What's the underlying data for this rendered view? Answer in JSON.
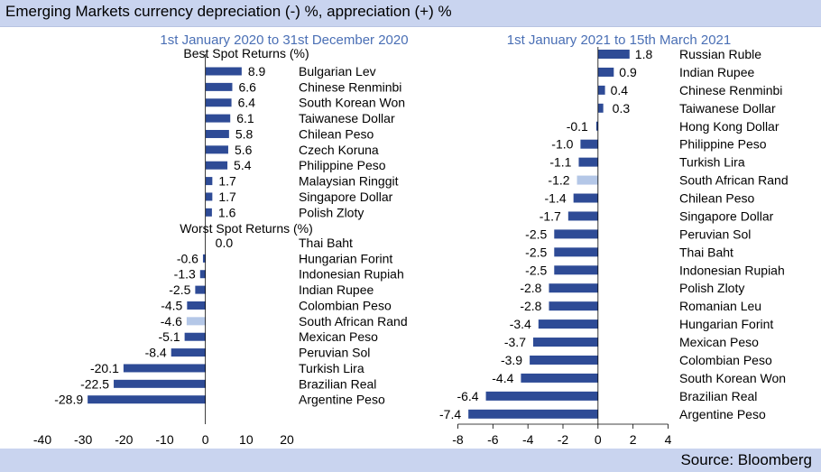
{
  "header": {
    "title": "Emerging Markets currency depreciation (-) %, appreciation (+) %"
  },
  "footer": {
    "source": "Source: Bloomberg"
  },
  "colors": {
    "bar": "#2e4b96",
    "highlight": "#b4c7e7",
    "subtitle": "#4a6fb5",
    "band": "#c9d4ef"
  },
  "chart_data": [
    {
      "type": "bar",
      "orientation": "horizontal",
      "title": "1st January 2020 to 31st  December 2020",
      "xlim": [
        -40,
        20
      ],
      "xticks": [
        -40,
        -30,
        -20,
        -10,
        0,
        10,
        20
      ],
      "groups": [
        {
          "heading": "Best Spot Returns (%)",
          "categories": [
            "Bulgarian Lev",
            "Chinese Renminbi",
            "South Korean Won",
            "Taiwanese Dollar",
            "Chilean Peso",
            "Czech Koruna",
            "Philippine Peso",
            "Malaysian Ringgit",
            "Singapore Dollar",
            "Polish Zloty"
          ],
          "values": [
            8.9,
            6.6,
            6.4,
            6.1,
            5.8,
            5.6,
            5.4,
            1.7,
            1.7,
            1.6
          ],
          "labels": [
            "8.9",
            "6.6",
            "6.4",
            "6.1",
            "5.8",
            "5.6",
            "5.4",
            "1.7",
            "1.7",
            "1.6"
          ]
        },
        {
          "heading": "Worst Spot Returns (%)",
          "categories": [
            "Thai Baht",
            "Hungarian Forint",
            "Indonesian Rupiah",
            "Indian Rupee",
            "Colombian Peso",
            "South African Rand",
            "Mexican Peso",
            "Peruvian Sol",
            "Turkish Lira",
            "Brazilian Real",
            "Argentine Peso"
          ],
          "values": [
            0.0,
            -0.6,
            -1.3,
            -2.5,
            -4.5,
            -4.6,
            -5.1,
            -8.4,
            -20.1,
            -22.5,
            -28.9
          ],
          "labels": [
            "0.0",
            "-0.6",
            "-1.3",
            "-2.5",
            "-4.5",
            "-4.6",
            "-5.1",
            "-8.4",
            "-20.1",
            "-22.5",
            "-28.9"
          ]
        }
      ],
      "highlight": "South African Rand"
    },
    {
      "type": "bar",
      "orientation": "horizontal",
      "title": "1st January 2021 to 15th March 2021",
      "xlim": [
        -8,
        4
      ],
      "xticks": [
        -8,
        -6,
        -4,
        -2,
        0,
        2,
        4
      ],
      "categories": [
        "Russian Ruble",
        "Indian Rupee",
        "Chinese Renminbi",
        "Taiwanese Dollar",
        "Hong Kong Dollar",
        "Philippine Peso",
        "Turkish Lira",
        "South African Rand",
        "Chilean Peso",
        "Singapore Dollar",
        "Peruvian Sol",
        "Thai Baht",
        "Indonesian Rupiah",
        "Polish Zloty",
        "Romanian Leu",
        "Hungarian Forint",
        "Mexican Peso",
        "Colombian Peso",
        "South Korean Won",
        "Brazilian Real",
        "Argentine Peso"
      ],
      "values": [
        1.8,
        0.9,
        0.4,
        0.3,
        -0.1,
        -1.0,
        -1.1,
        -1.2,
        -1.4,
        -1.7,
        -2.5,
        -2.5,
        -2.5,
        -2.8,
        -2.8,
        -3.4,
        -3.7,
        -3.9,
        -4.4,
        -6.4,
        -7.4
      ],
      "labels": [
        "1.8",
        "0.9",
        "0.4",
        "0.3",
        "-0.1",
        "-1.0",
        "-1.1",
        "-1.2",
        "-1.4",
        "-1.7",
        "-2.5",
        "-2.5",
        "-2.5",
        "-2.8",
        "-2.8",
        "-3.4",
        "-3.7",
        "-3.9",
        "-4.4",
        "-6.4",
        "-7.4"
      ],
      "highlight": "South African Rand"
    }
  ]
}
